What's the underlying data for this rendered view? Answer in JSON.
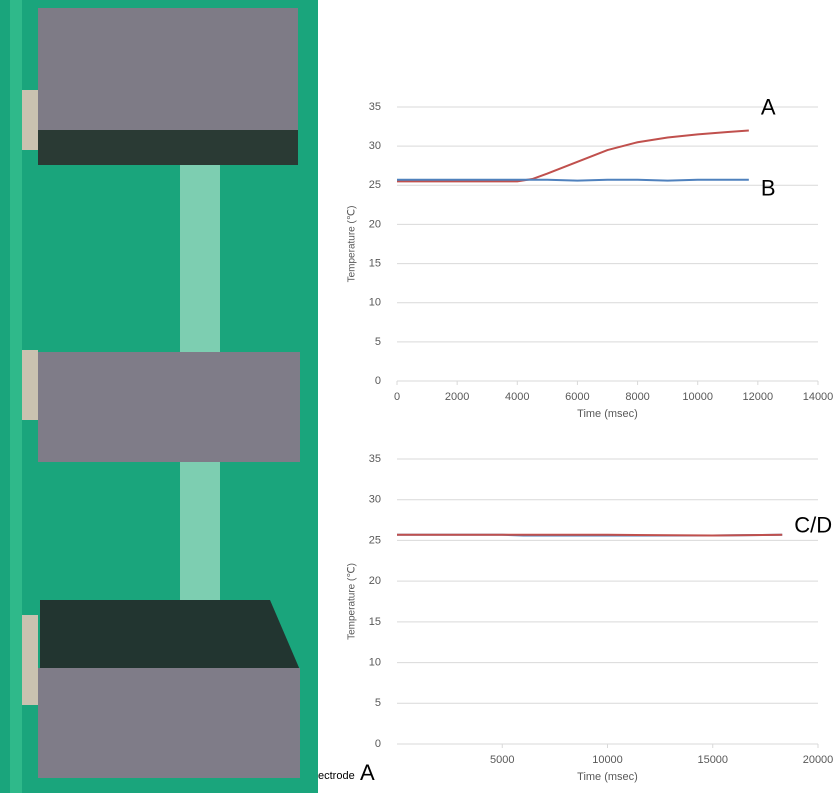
{
  "photo": {
    "labels": [
      "ectrode",
      "A"
    ]
  },
  "chart_data": [
    {
      "type": "line",
      "xlabel": "Time (msec)",
      "ylabel": "Temperature (℃)",
      "x": [
        0,
        1000,
        2000,
        3000,
        4000,
        4500,
        5000,
        6000,
        7000,
        8000,
        9000,
        10000,
        11000,
        11700
      ],
      "series": [
        {
          "name": "A",
          "color": "#c0504d",
          "values": [
            25.5,
            25.5,
            25.5,
            25.5,
            25.5,
            25.8,
            26.5,
            28,
            29.5,
            30.5,
            31.1,
            31.5,
            31.8,
            32
          ]
        },
        {
          "name": "B",
          "color": "#4f81bd",
          "values": [
            25.7,
            25.7,
            25.7,
            25.7,
            25.7,
            25.7,
            25.7,
            25.6,
            25.7,
            25.7,
            25.6,
            25.7,
            25.7,
            25.7
          ]
        }
      ],
      "xlim": [
        0,
        14000
      ],
      "xticks": [
        0,
        2000,
        4000,
        6000,
        8000,
        10000,
        12000,
        14000
      ],
      "ylim": [
        0,
        35
      ],
      "yticks": [
        0,
        5,
        10,
        15,
        20,
        25,
        30,
        35
      ],
      "grid": true
    },
    {
      "type": "line",
      "xlabel": "Time (msec)",
      "ylabel": "Temperature (℃)",
      "x": [
        0,
        5000,
        6000,
        10000,
        15000,
        18300
      ],
      "series": [
        {
          "color": "#4f81bd",
          "values": [
            25.7,
            25.7,
            25.6,
            25.6,
            25.6,
            25.7
          ]
        },
        {
          "name": "C/D",
          "color": "#c0504d",
          "values": [
            25.7,
            25.7,
            25.7,
            25.7,
            25.6,
            25.7
          ]
        }
      ],
      "xlim": [
        0,
        20000
      ],
      "xticks": [
        5000,
        10000,
        15000,
        20000
      ],
      "ylim": [
        0,
        35
      ],
      "yticks": [
        0,
        5,
        10,
        15,
        20,
        25,
        30,
        35
      ],
      "grid": true
    }
  ]
}
